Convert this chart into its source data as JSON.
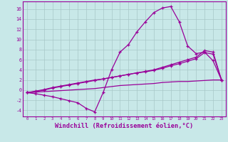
{
  "bg_color": "#c8e8e8",
  "grid_color": "#a8c8c8",
  "line_color": "#990099",
  "xlabel": "Windchill (Refroidissement éolien,°C)",
  "xlim": [
    -0.5,
    23.5
  ],
  "ylim": [
    -5.2,
    17.5
  ],
  "ytick_vals": [
    -4,
    -2,
    0,
    2,
    4,
    6,
    8,
    10,
    12,
    14,
    16
  ],
  "series1_x": [
    0,
    1,
    2,
    3,
    4,
    5,
    6,
    7,
    8,
    9,
    10,
    11,
    12,
    13,
    14,
    15,
    16,
    17,
    18,
    19,
    20,
    21,
    22,
    23
  ],
  "series1_y": [
    -0.5,
    -0.7,
    -1.0,
    -1.3,
    -1.7,
    -2.1,
    -2.5,
    -3.6,
    -4.3,
    -0.5,
    4.0,
    7.5,
    9.0,
    11.5,
    13.5,
    15.3,
    16.2,
    16.5,
    13.5,
    8.7,
    7.2,
    7.5,
    5.8,
    2.0
  ],
  "series2_x": [
    0,
    1,
    2,
    3,
    4,
    5,
    6,
    7,
    8,
    9,
    10,
    11,
    12,
    13,
    14,
    15,
    16,
    17,
    18,
    19,
    20,
    21,
    22,
    23
  ],
  "series2_y": [
    -0.5,
    -0.3,
    0.0,
    0.4,
    0.7,
    1.0,
    1.3,
    1.6,
    1.9,
    2.2,
    2.5,
    2.8,
    3.1,
    3.4,
    3.7,
    4.0,
    4.5,
    5.0,
    5.5,
    6.0,
    6.5,
    7.8,
    7.5,
    2.0
  ],
  "series3_x": [
    0,
    1,
    2,
    3,
    4,
    5,
    6,
    7,
    8,
    9,
    10,
    11,
    12,
    13,
    14,
    15,
    16,
    17,
    18,
    19,
    20,
    21,
    22,
    23
  ],
  "series3_y": [
    -0.5,
    -0.2,
    0.1,
    0.5,
    0.8,
    1.1,
    1.4,
    1.7,
    2.0,
    2.2,
    2.5,
    2.8,
    3.1,
    3.4,
    3.6,
    3.9,
    4.3,
    4.8,
    5.2,
    5.7,
    6.2,
    7.4,
    7.1,
    2.0
  ],
  "series4_x": [
    0,
    1,
    2,
    3,
    4,
    5,
    6,
    7,
    8,
    9,
    10,
    11,
    12,
    13,
    14,
    15,
    16,
    17,
    18,
    19,
    20,
    21,
    22,
    23
  ],
  "series4_y": [
    -0.5,
    -0.4,
    -0.3,
    -0.2,
    -0.1,
    0.0,
    0.1,
    0.2,
    0.3,
    0.5,
    0.7,
    0.9,
    1.0,
    1.1,
    1.2,
    1.3,
    1.5,
    1.6,
    1.7,
    1.7,
    1.8,
    1.9,
    2.0,
    2.0
  ]
}
